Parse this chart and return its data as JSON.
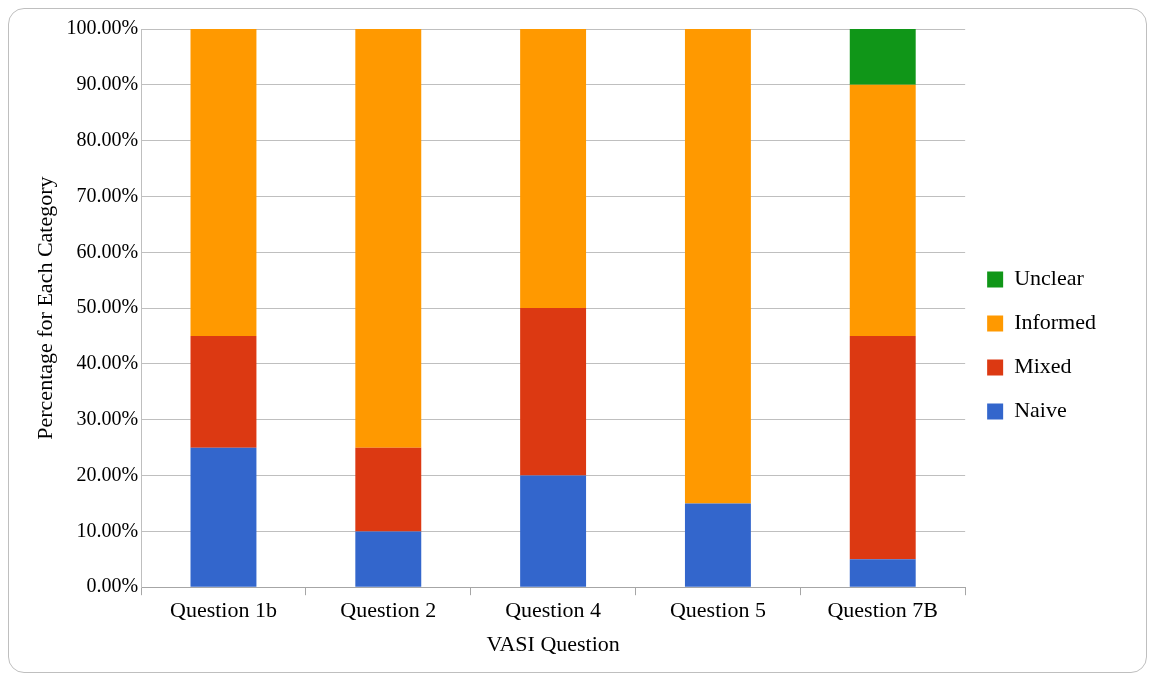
{
  "chart_data": {
    "type": "bar",
    "stacked": true,
    "xlabel": "VASI Question",
    "ylabel": "Percentage for Each Category",
    "categories": [
      "Question 1b",
      "Question 2",
      "Question 4",
      "Question 5",
      "Question 7B"
    ],
    "series": [
      {
        "name": "Naive",
        "color": "#3366cc",
        "values": [
          25,
          10,
          20,
          15,
          5
        ]
      },
      {
        "name": "Mixed",
        "color": "#dc3912",
        "values": [
          20,
          15,
          30,
          0,
          40
        ]
      },
      {
        "name": "Informed",
        "color": "#ff9900",
        "values": [
          55,
          75,
          50,
          85,
          45
        ]
      },
      {
        "name": "Unclear",
        "color": "#109618",
        "values": [
          0,
          0,
          0,
          0,
          10
        ]
      }
    ],
    "ylim": [
      0,
      100
    ],
    "yticks": [
      {
        "value": 0,
        "label": "0.00%"
      },
      {
        "value": 10,
        "label": "10.00%"
      },
      {
        "value": 20,
        "label": "20.00%"
      },
      {
        "value": 30,
        "label": "30.00%"
      },
      {
        "value": 40,
        "label": "40.00%"
      },
      {
        "value": 50,
        "label": "50.00%"
      },
      {
        "value": 60,
        "label": "60.00%"
      },
      {
        "value": 70,
        "label": "70.00%"
      },
      {
        "value": 80,
        "label": "80.00%"
      },
      {
        "value": 90,
        "label": "90.00%"
      },
      {
        "value": 100,
        "label": "100.00%"
      }
    ],
    "grid": "y",
    "legend": "right"
  }
}
